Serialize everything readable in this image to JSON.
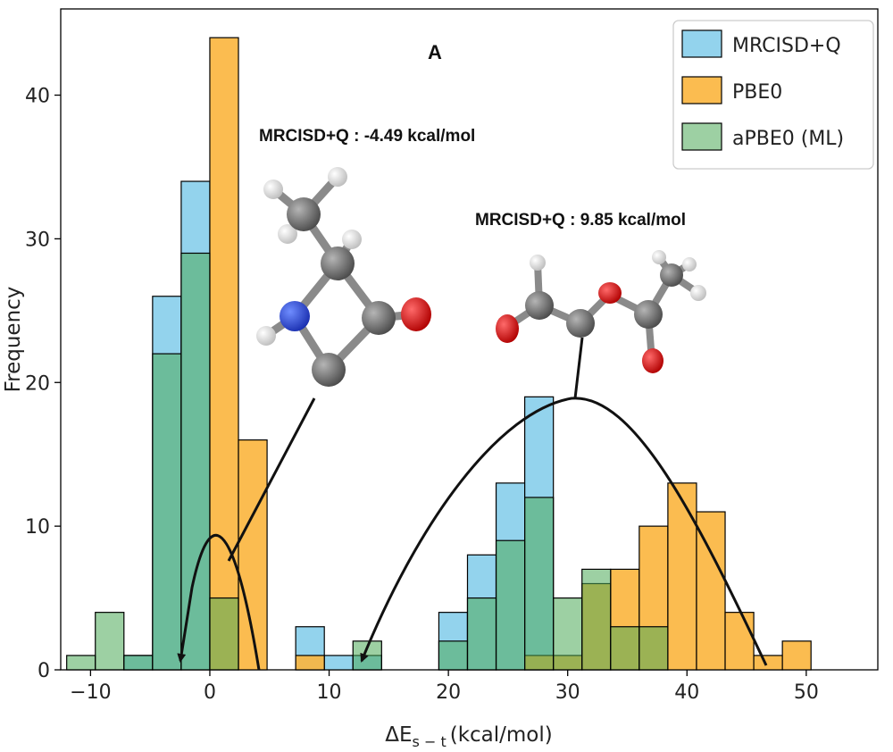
{
  "chart_data": {
    "type": "histogram",
    "panel_label": "A",
    "xlabel_prefix": "ΔE",
    "xlabel_subscript": "s − t",
    "xlabel_suffix": "(kcal/mol)",
    "ylabel": "Frequency",
    "xlim": [
      -12.5,
      56
    ],
    "ylim": [
      0,
      46
    ],
    "xticks": [
      -10,
      0,
      10,
      20,
      30,
      40,
      50
    ],
    "yticks": [
      0,
      10,
      20,
      30,
      40
    ],
    "bin_edges": [
      -12,
      -9.6,
      -7.2,
      -4.8,
      -2.4,
      0,
      2.4,
      4.8,
      7.2,
      9.6,
      12,
      14.4,
      16.8,
      19.2,
      21.6,
      24,
      26.4,
      28.8,
      31.2,
      33.6,
      36,
      38.4,
      40.8,
      43.2,
      45.6,
      48,
      50.4,
      52.8
    ],
    "series": [
      {
        "name": "MRCISD+Q",
        "color": "#87ceeb",
        "opacity": 0.9,
        "values": [
          0,
          0,
          1,
          26,
          34,
          0,
          0,
          0,
          3,
          1,
          1,
          0,
          0,
          4,
          8,
          13,
          19,
          0,
          0,
          0,
          0,
          0,
          0,
          0,
          0,
          0,
          0
        ]
      },
      {
        "name": "PBE0",
        "color": "#fbb53d",
        "opacity": 0.9,
        "values": [
          0,
          0,
          0,
          0,
          0,
          44,
          16,
          0,
          1,
          0,
          0,
          0,
          0,
          0,
          0,
          0,
          1,
          1,
          6,
          7,
          10,
          13,
          11,
          4,
          1,
          2,
          0
        ]
      },
      {
        "name": "aPBE0 (ML)",
        "color": "#4daa57",
        "opacity": 0.55,
        "values": [
          1,
          4,
          1,
          22,
          29,
          5,
          0,
          0,
          0,
          0,
          2,
          0,
          0,
          2,
          5,
          9,
          12,
          5,
          7,
          3,
          3,
          0,
          0,
          0,
          0,
          0,
          0
        ]
      }
    ],
    "annotations": [
      {
        "text": "MRCISD+Q : -4.49 kcal/mol",
        "target_x": -4.49
      },
      {
        "text": "MRCISD+Q : 9.85 kcal/mol",
        "target_x": 9.85
      }
    ]
  }
}
